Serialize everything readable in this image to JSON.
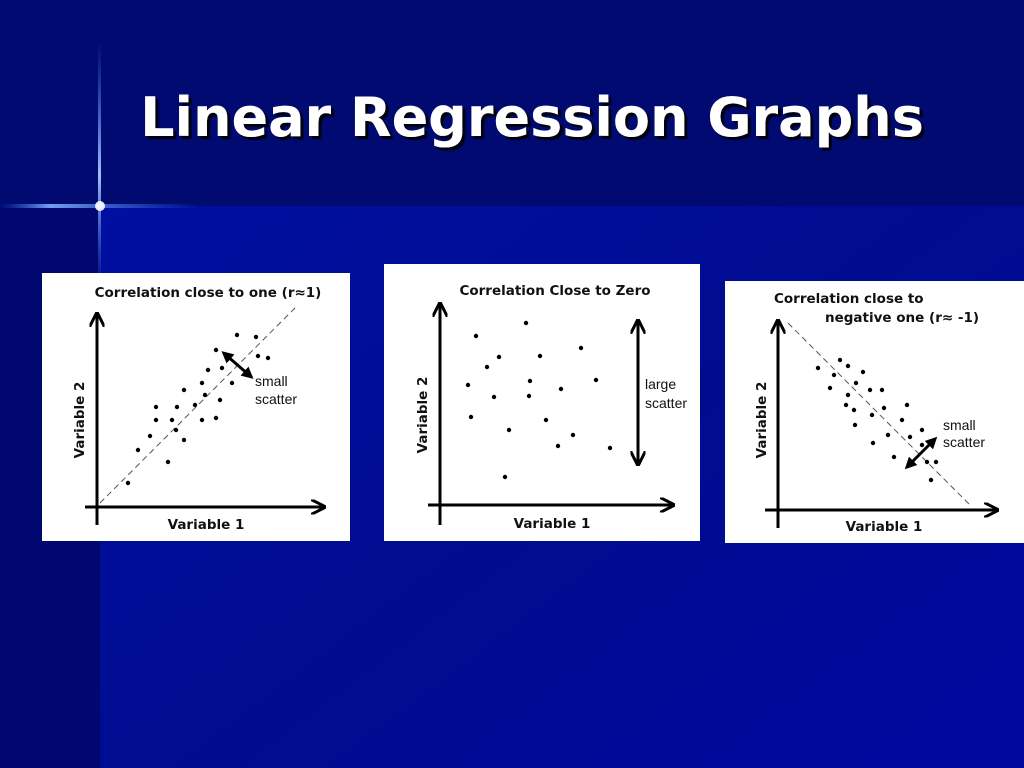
{
  "title": "Linear Regression Graphs",
  "panels": [
    {
      "title": [
        "Correlation close to one (r≈1)"
      ],
      "x_label": "Variable 1",
      "y_label": "Variable 2",
      "annotation": [
        "small",
        "scatter"
      ]
    },
    {
      "title": [
        "Correlation Close to Zero"
      ],
      "x_label": "Variable 1",
      "y_label": "Variable 2",
      "annotation": [
        "large",
        "scatter"
      ]
    },
    {
      "title": [
        "Correlation close to",
        "negative one (r≈ -1)"
      ],
      "x_label": "Variable 1",
      "y_label": "Variable 2",
      "annotation": [
        "small",
        "scatter"
      ]
    }
  ]
}
